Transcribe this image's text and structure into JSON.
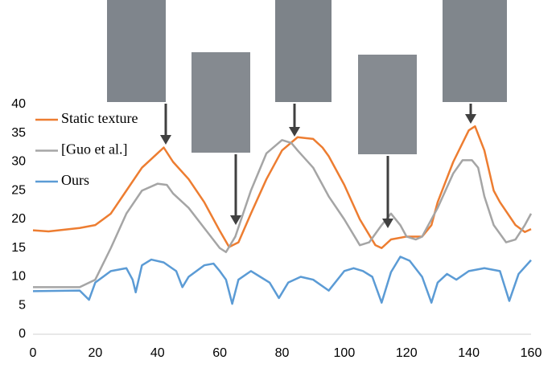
{
  "chart_data": {
    "type": "line",
    "xlim": [
      0,
      160
    ],
    "xticks": [
      0,
      20,
      40,
      60,
      80,
      100,
      120,
      140,
      160
    ],
    "ylim": [
      0,
      40
    ],
    "yticks": [
      0,
      5,
      10,
      15,
      20,
      25,
      30,
      35,
      40
    ],
    "grid": false,
    "legend": "upper-left",
    "series": [
      {
        "name": "Static texture",
        "color": "#ed7d31",
        "x": [
          0,
          5,
          10,
          15,
          20,
          25,
          30,
          35,
          40,
          42,
          45,
          50,
          55,
          60,
          63,
          66,
          70,
          75,
          80,
          85,
          90,
          93,
          95,
          100,
          105,
          110,
          112,
          115,
          120,
          125,
          128,
          130,
          135,
          140,
          142,
          145,
          148,
          150,
          155,
          158,
          160
        ],
        "values": [
          18.1,
          17.9,
          18.2,
          18.5,
          19,
          21,
          25,
          29,
          31.5,
          32.5,
          30,
          27,
          23,
          18,
          15.2,
          16,
          21,
          27,
          32,
          34.3,
          34,
          32.5,
          31,
          26,
          20,
          15.5,
          15,
          16.5,
          17,
          17,
          19,
          23,
          30,
          35.5,
          36.2,
          32,
          25,
          23,
          19,
          17.8,
          18.3
        ]
      },
      {
        "name": "[Guo et al.]",
        "color": "#a5a5a5",
        "x": [
          0,
          15,
          20,
          25,
          30,
          35,
          40,
          43,
          45,
          50,
          55,
          60,
          62,
          65,
          70,
          75,
          80,
          83,
          85,
          90,
          95,
          100,
          105,
          108,
          112,
          115,
          118,
          120,
          123,
          125,
          130,
          135,
          138,
          141,
          143,
          145,
          148,
          152,
          155,
          158,
          160
        ],
        "values": [
          8.2,
          8.2,
          9.5,
          15,
          21,
          25,
          26.2,
          26,
          24.5,
          22,
          18.5,
          15,
          14.3,
          17,
          25,
          31.5,
          33.8,
          33.3,
          32,
          29,
          24,
          20,
          15.5,
          16,
          19,
          21,
          19,
          17,
          16.5,
          17,
          22,
          28,
          30.3,
          30.3,
          29,
          24,
          19,
          16,
          16.5,
          19,
          21
        ]
      },
      {
        "name": "Ours",
        "color": "#5b9bd5",
        "x": [
          0,
          15,
          18,
          20,
          25,
          30,
          32,
          33,
          35,
          38,
          42,
          46,
          48,
          50,
          55,
          58,
          60,
          62,
          64,
          66,
          70,
          73,
          76,
          79,
          82,
          86,
          90,
          95,
          100,
          103,
          106,
          109,
          112,
          115,
          118,
          121,
          125,
          128,
          130,
          133,
          136,
          140,
          145,
          150,
          153,
          156,
          160
        ],
        "values": [
          7.5,
          7.6,
          6,
          9,
          11,
          11.5,
          9.5,
          7.3,
          12,
          13,
          12.5,
          11,
          8.2,
          10,
          12,
          12.3,
          11,
          9.5,
          5.3,
          9.5,
          11,
          10,
          9,
          6.3,
          9,
          10,
          9.5,
          7.6,
          11,
          11.5,
          11,
          10,
          5.5,
          10.8,
          13.5,
          12.8,
          10,
          5.5,
          9,
          10.5,
          9.5,
          11,
          11.5,
          11,
          5.8,
          10.5,
          12.9
        ]
      }
    ]
  }
}
